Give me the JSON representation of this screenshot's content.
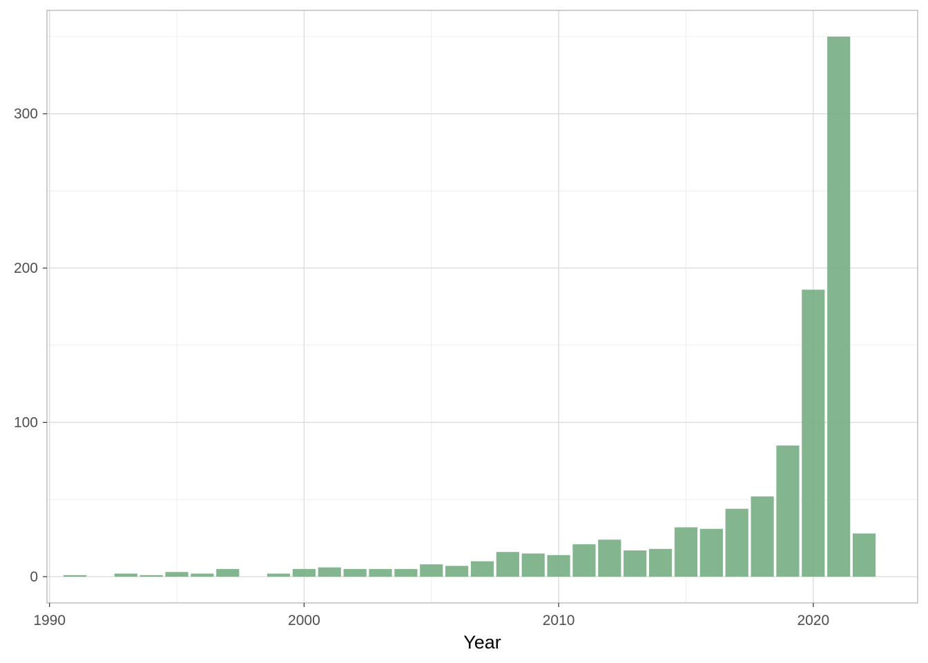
{
  "chart_data": {
    "type": "bar",
    "title": "",
    "xlabel": "Year",
    "ylabel": "",
    "x": [
      1991,
      1993,
      1994,
      1995,
      1996,
      1997,
      1999,
      2000,
      2001,
      2002,
      2003,
      2004,
      2005,
      2006,
      2007,
      2008,
      2009,
      2010,
      2011,
      2012,
      2013,
      2014,
      2015,
      2016,
      2017,
      2018,
      2019,
      2020,
      2021,
      2022
    ],
    "values": [
      1,
      2,
      1,
      3,
      2,
      5,
      2,
      5,
      6,
      5,
      5,
      5,
      8,
      7,
      10,
      16,
      15,
      14,
      21,
      24,
      17,
      18,
      32,
      31,
      44,
      52,
      85,
      186,
      350,
      28
    ],
    "xlim": [
      1989.9,
      2024.1
    ],
    "ylim": [
      -17,
      367
    ],
    "x_ticks": [
      1990,
      2000,
      2010,
      2020
    ],
    "x_tick_labels": [
      "1990",
      "2000",
      "2010",
      "2020"
    ],
    "y_ticks": [
      0,
      100,
      200,
      300
    ],
    "y_tick_labels": [
      "0",
      "100",
      "200",
      "300"
    ],
    "grid": true,
    "legend": "none",
    "colors": {
      "bar": "#76ad83",
      "panel_border": "#b3b3b3",
      "grid_major": "#d9d9d9",
      "grid_minor": "#ebebeb"
    }
  }
}
